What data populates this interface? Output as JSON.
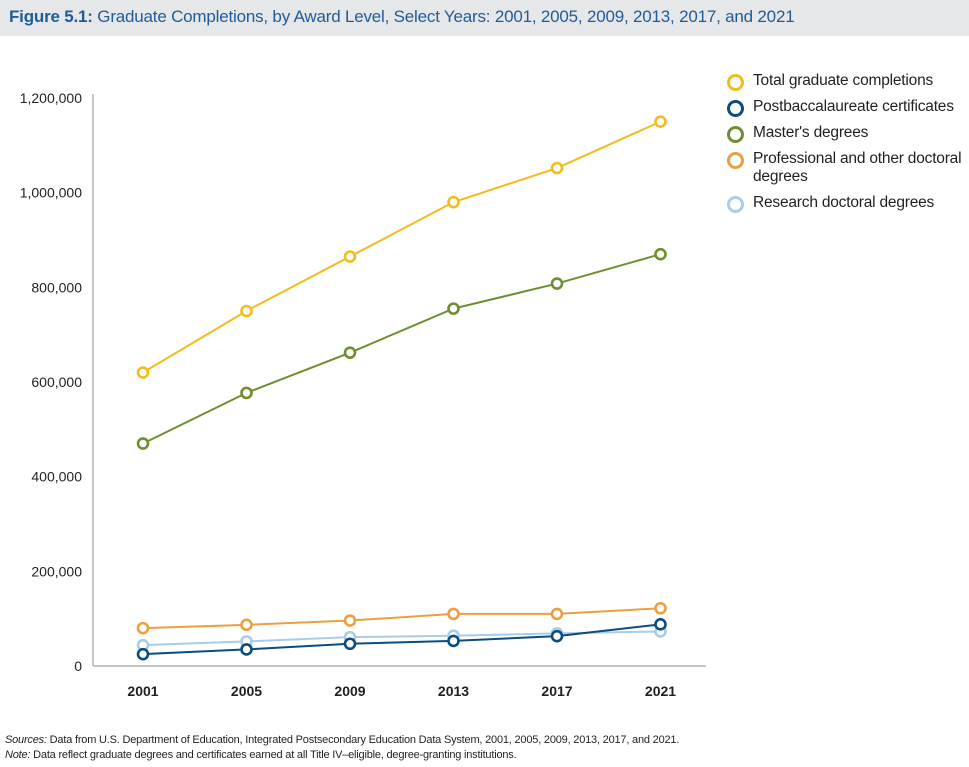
{
  "title": {
    "label": "Figure 5.1:",
    "text": "Graduate Completions, by Award Level, Select Years: 2001, 2005, 2009, 2013, 2017, and 2021"
  },
  "colors": {
    "title": "#1f5c99",
    "total": "#f3bb1c",
    "postbacc": "#0a4d7e",
    "masters": "#6f8e2e",
    "professional": "#ec9f3e",
    "research": "#a8cdea"
  },
  "chart_data": {
    "type": "line",
    "title": "Graduate Completions, by Award Level, Select Years: 2001, 2005, 2009, 2013, 2017, and 2021",
    "xlabel": "",
    "ylabel": "",
    "categories": [
      "2001",
      "2005",
      "2009",
      "2013",
      "2017",
      "2021"
    ],
    "ylim": [
      0,
      1200000
    ],
    "yticks": [
      0,
      200000,
      400000,
      600000,
      800000,
      1000000,
      1200000
    ],
    "ytick_labels": [
      "0",
      "200,000",
      "400,000",
      "600,000",
      "800,000",
      "1,000,000",
      "1,200,000"
    ],
    "grid": false,
    "legend_position": "top-right",
    "series": [
      {
        "key": "total",
        "name": "Total graduate completions",
        "values": [
          620000,
          750000,
          865000,
          980000,
          1052000,
          1150000
        ]
      },
      {
        "key": "postbacc",
        "name": "Postbaccalaureate certificates",
        "values": [
          25000,
          35000,
          47000,
          53000,
          63000,
          88000
        ]
      },
      {
        "key": "masters",
        "name": "Master's degrees",
        "values": [
          470000,
          577000,
          662000,
          755000,
          808000,
          870000
        ]
      },
      {
        "key": "professional",
        "name": "Professional and other doctoral degrees",
        "values": [
          80000,
          87000,
          96000,
          110000,
          110000,
          122000
        ]
      },
      {
        "key": "research",
        "name": "Research doctoral degrees",
        "values": [
          44000,
          52000,
          61000,
          64000,
          69000,
          73000
        ]
      }
    ]
  },
  "legend": {
    "items": [
      {
        "label": "Total graduate completions"
      },
      {
        "label": "Postbaccalaureate certificates"
      },
      {
        "label": "Master's degrees"
      },
      {
        "label": "Professional and other doctoral degrees"
      },
      {
        "label": "Research doctoral degrees"
      }
    ]
  },
  "notes": {
    "sources_label": "Sources:",
    "sources_text": "Data from U.S. Department of Education, Integrated Postsecondary Education Data System, 2001, 2005, 2009, 2013, 2017, and 2021.",
    "note_label": "Note:",
    "note_text": "Data reflect graduate degrees and certificates earned at all Title IV–eligible, degree-granting institutions."
  }
}
